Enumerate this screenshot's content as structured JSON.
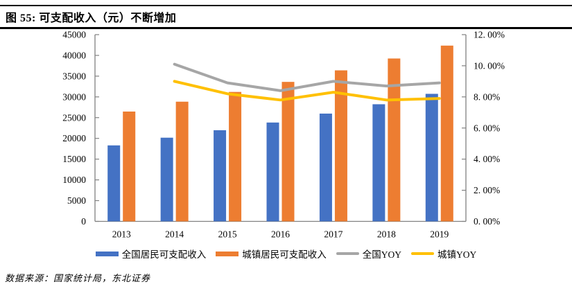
{
  "header": {
    "title": "图 55: 可支配收入（元）不断增加"
  },
  "footer": {
    "source": "数据来源：国家统计局，东北证券"
  },
  "colors": {
    "national_bar": "#4472C4",
    "urban_bar": "#ED7D31",
    "national_yoy_line": "#A6A6A6",
    "urban_yoy_line": "#FFC000",
    "axis": "#808080",
    "text": "#000000"
  },
  "chart_data": {
    "type": "bar",
    "subtype": "dual-axis combo: grouped bars (left axis) + lines (right axis)",
    "title": "可支配收入（元）不断增加",
    "categories": [
      "2013",
      "2014",
      "2015",
      "2016",
      "2017",
      "2018",
      "2019"
    ],
    "series": [
      {
        "name": "全国居民可支配收入",
        "type": "bar",
        "axis": "left",
        "color": "#4472C4",
        "values": [
          18311,
          20167,
          21966,
          23821,
          25974,
          28228,
          30733
        ]
      },
      {
        "name": "城镇居民可支配收入",
        "type": "bar",
        "axis": "left",
        "color": "#ED7D31",
        "values": [
          26467,
          28844,
          31195,
          33616,
          36396,
          39251,
          42359
        ]
      },
      {
        "name": "全国YOY",
        "type": "line",
        "axis": "right",
        "color": "#A6A6A6",
        "values": [
          null,
          10.1,
          8.9,
          8.4,
          9.0,
          8.7,
          8.9
        ]
      },
      {
        "name": "城镇YOY",
        "type": "line",
        "axis": "right",
        "color": "#FFC000",
        "values": [
          null,
          9.0,
          8.2,
          7.8,
          8.3,
          7.8,
          7.9
        ]
      }
    ],
    "left_axis": {
      "min": 0,
      "max": 45000,
      "step": 5000,
      "tick_labels": [
        "0",
        "5000",
        "10000",
        "15000",
        "20000",
        "25000",
        "30000",
        "35000",
        "40000",
        "45000"
      ]
    },
    "right_axis": {
      "min": 0,
      "max": 12,
      "step": 2,
      "tick_labels": [
        "0. 00%",
        "2. 00%",
        "4. 00%",
        "6. 00%",
        "8. 00%",
        "10. 00%",
        "12. 00%"
      ]
    },
    "legend_position": "bottom",
    "grid": false
  }
}
